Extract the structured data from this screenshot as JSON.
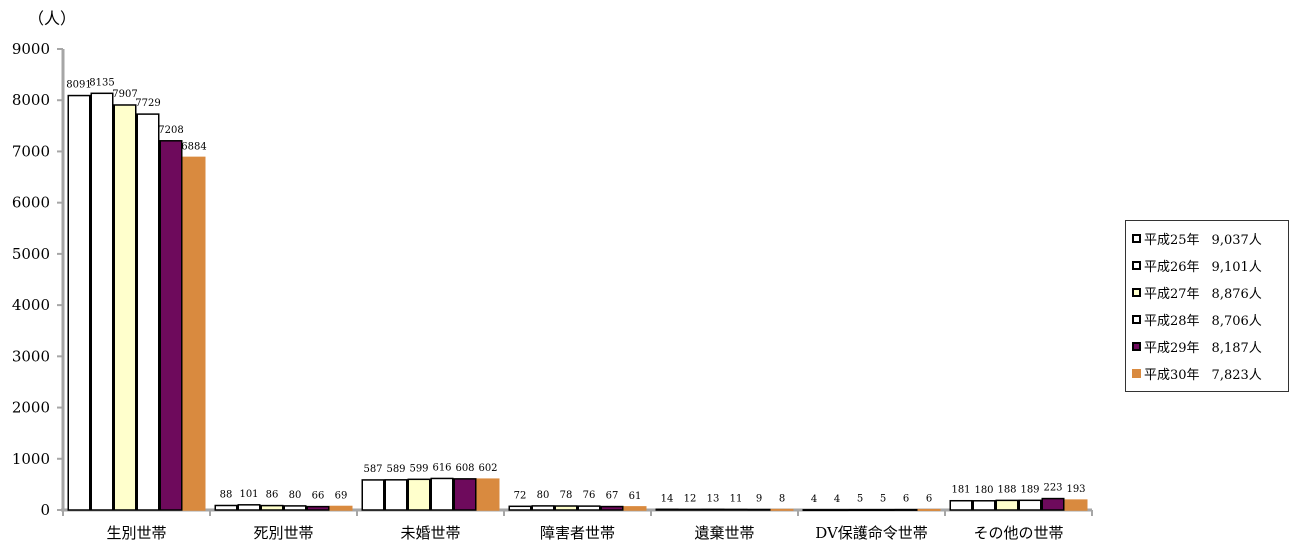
{
  "chart_data": {
    "type": "bar",
    "unit_label": "（人）",
    "categories": [
      "生別世帯",
      "死別世帯",
      "未婚世帯",
      "障害者世帯",
      "遺棄世帯",
      "DV保護命令世帯",
      "その他の世帯"
    ],
    "ylim": [
      0,
      9000
    ],
    "yticks": [
      "0",
      "1000",
      "2000",
      "3000",
      "4000",
      "5000",
      "6000",
      "7000",
      "8000",
      "9000"
    ],
    "grid": false,
    "legend_position": "right",
    "series": [
      {
        "name": "平成25年",
        "total": "9,037人",
        "fill": "#ffffff",
        "stroke": "#000000",
        "values": [
          8091,
          88,
          587,
          72,
          14,
          4,
          181
        ]
      },
      {
        "name": "平成26年",
        "total": "9,101人",
        "fill": "#ffffff",
        "stroke": "#000000",
        "values": [
          8135,
          101,
          589,
          80,
          12,
          4,
          180
        ]
      },
      {
        "name": "平成27年",
        "total": "8,876人",
        "fill": "#ffffcc",
        "stroke": "#000000",
        "values": [
          7907,
          86,
          599,
          78,
          13,
          5,
          188
        ]
      },
      {
        "name": "平成28年",
        "total": "8,706人",
        "fill": "#ffffff",
        "stroke": "#000000",
        "values": [
          7729,
          80,
          616,
          76,
          11,
          5,
          189
        ]
      },
      {
        "name": "平成29年",
        "total": "8,187人",
        "fill": "#6e0a5c",
        "stroke": "#000000",
        "values": [
          7208,
          66,
          608,
          67,
          9,
          6,
          223
        ]
      },
      {
        "name": "平成30年",
        "total": "7,823人",
        "fill": "#d98a3f",
        "stroke": "#d98a3f",
        "values": [
          6884,
          69,
          602,
          61,
          8,
          6,
          193
        ]
      }
    ]
  }
}
